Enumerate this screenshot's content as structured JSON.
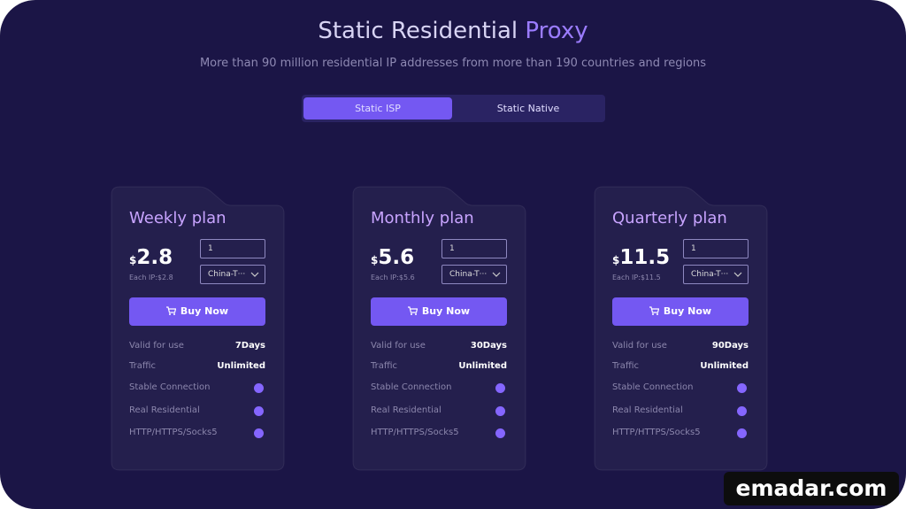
{
  "header": {
    "title_main": "Static Residential",
    "title_accent": "Proxy",
    "subtitle": "More than 90 million residential IP addresses from more than 190 countries and regions"
  },
  "tabs": [
    "Static ISP",
    "Static Native"
  ],
  "plans": [
    {
      "name": "Weekly plan",
      "currency": "$",
      "price": "2.8",
      "each_ip": "Each IP:$2.8",
      "quantity": "1",
      "region": "China-T···",
      "button": "Buy Now",
      "features": [
        {
          "label": "Valid for use",
          "value": "7Days"
        },
        {
          "label": "Traffic",
          "value": "Unlimited"
        },
        {
          "label": "Stable Connection"
        },
        {
          "label": "Real Residential"
        },
        {
          "label": "HTTP/HTTPS/Socks5"
        }
      ]
    },
    {
      "name": "Monthly plan",
      "currency": "$",
      "price": "5.6",
      "each_ip": "Each IP:$5.6",
      "quantity": "1",
      "region": "China-T···",
      "button": "Buy Now",
      "features": [
        {
          "label": "Valid for use",
          "value": "30Days"
        },
        {
          "label": "Traffic",
          "value": "Unlimited"
        },
        {
          "label": "Stable Connection"
        },
        {
          "label": "Real Residential"
        },
        {
          "label": "HTTP/HTTPS/Socks5"
        }
      ]
    },
    {
      "name": "Quarterly plan",
      "currency": "$",
      "price": "11.5",
      "each_ip": "Each IP:$11.5",
      "quantity": "1",
      "region": "China-T···",
      "button": "Buy Now",
      "features": [
        {
          "label": "Valid for use",
          "value": "90Days"
        },
        {
          "label": "Traffic",
          "value": "Unlimited"
        },
        {
          "label": "Stable Connection"
        },
        {
          "label": "Real Residential"
        },
        {
          "label": "HTTP/HTTPS/Socks5"
        }
      ]
    }
  ],
  "watermark": "emadar.com"
}
